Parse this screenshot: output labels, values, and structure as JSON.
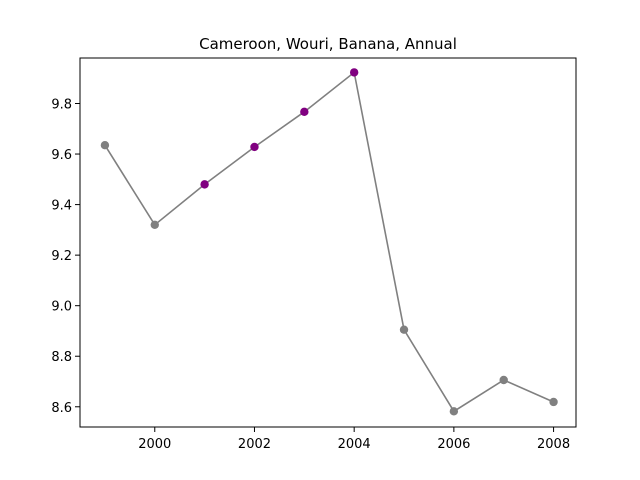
{
  "chart_data": {
    "type": "line",
    "title": "Cameroon, Wouri, Banana, Annual",
    "xlabel": "",
    "ylabel": "",
    "x": [
      1999,
      2000,
      2001,
      2002,
      2003,
      2004,
      2005,
      2006,
      2007,
      2008
    ],
    "series": [
      {
        "values": [
          9.635,
          9.32,
          9.48,
          9.628,
          9.767,
          9.923,
          8.905,
          8.582,
          8.706,
          8.619
        ],
        "point_colors": [
          "#808080",
          "#808080",
          "#800080",
          "#800080",
          "#800080",
          "#800080",
          "#808080",
          "#808080",
          "#808080",
          "#808080"
        ]
      }
    ],
    "line_color": "#808080",
    "xlim": [
      1998.5,
      2008.45
    ],
    "ylim": [
      8.52,
      9.98
    ],
    "xticks": [
      2000,
      2002,
      2004,
      2006,
      2008
    ],
    "yticks": [
      8.6,
      8.8,
      9.0,
      9.2,
      9.4,
      9.6,
      9.8
    ],
    "ytick_labels": [
      "8.6",
      "8.8",
      "9.0",
      "9.2",
      "9.4",
      "9.6",
      "9.8"
    ],
    "grid": false,
    "legend": "none"
  }
}
